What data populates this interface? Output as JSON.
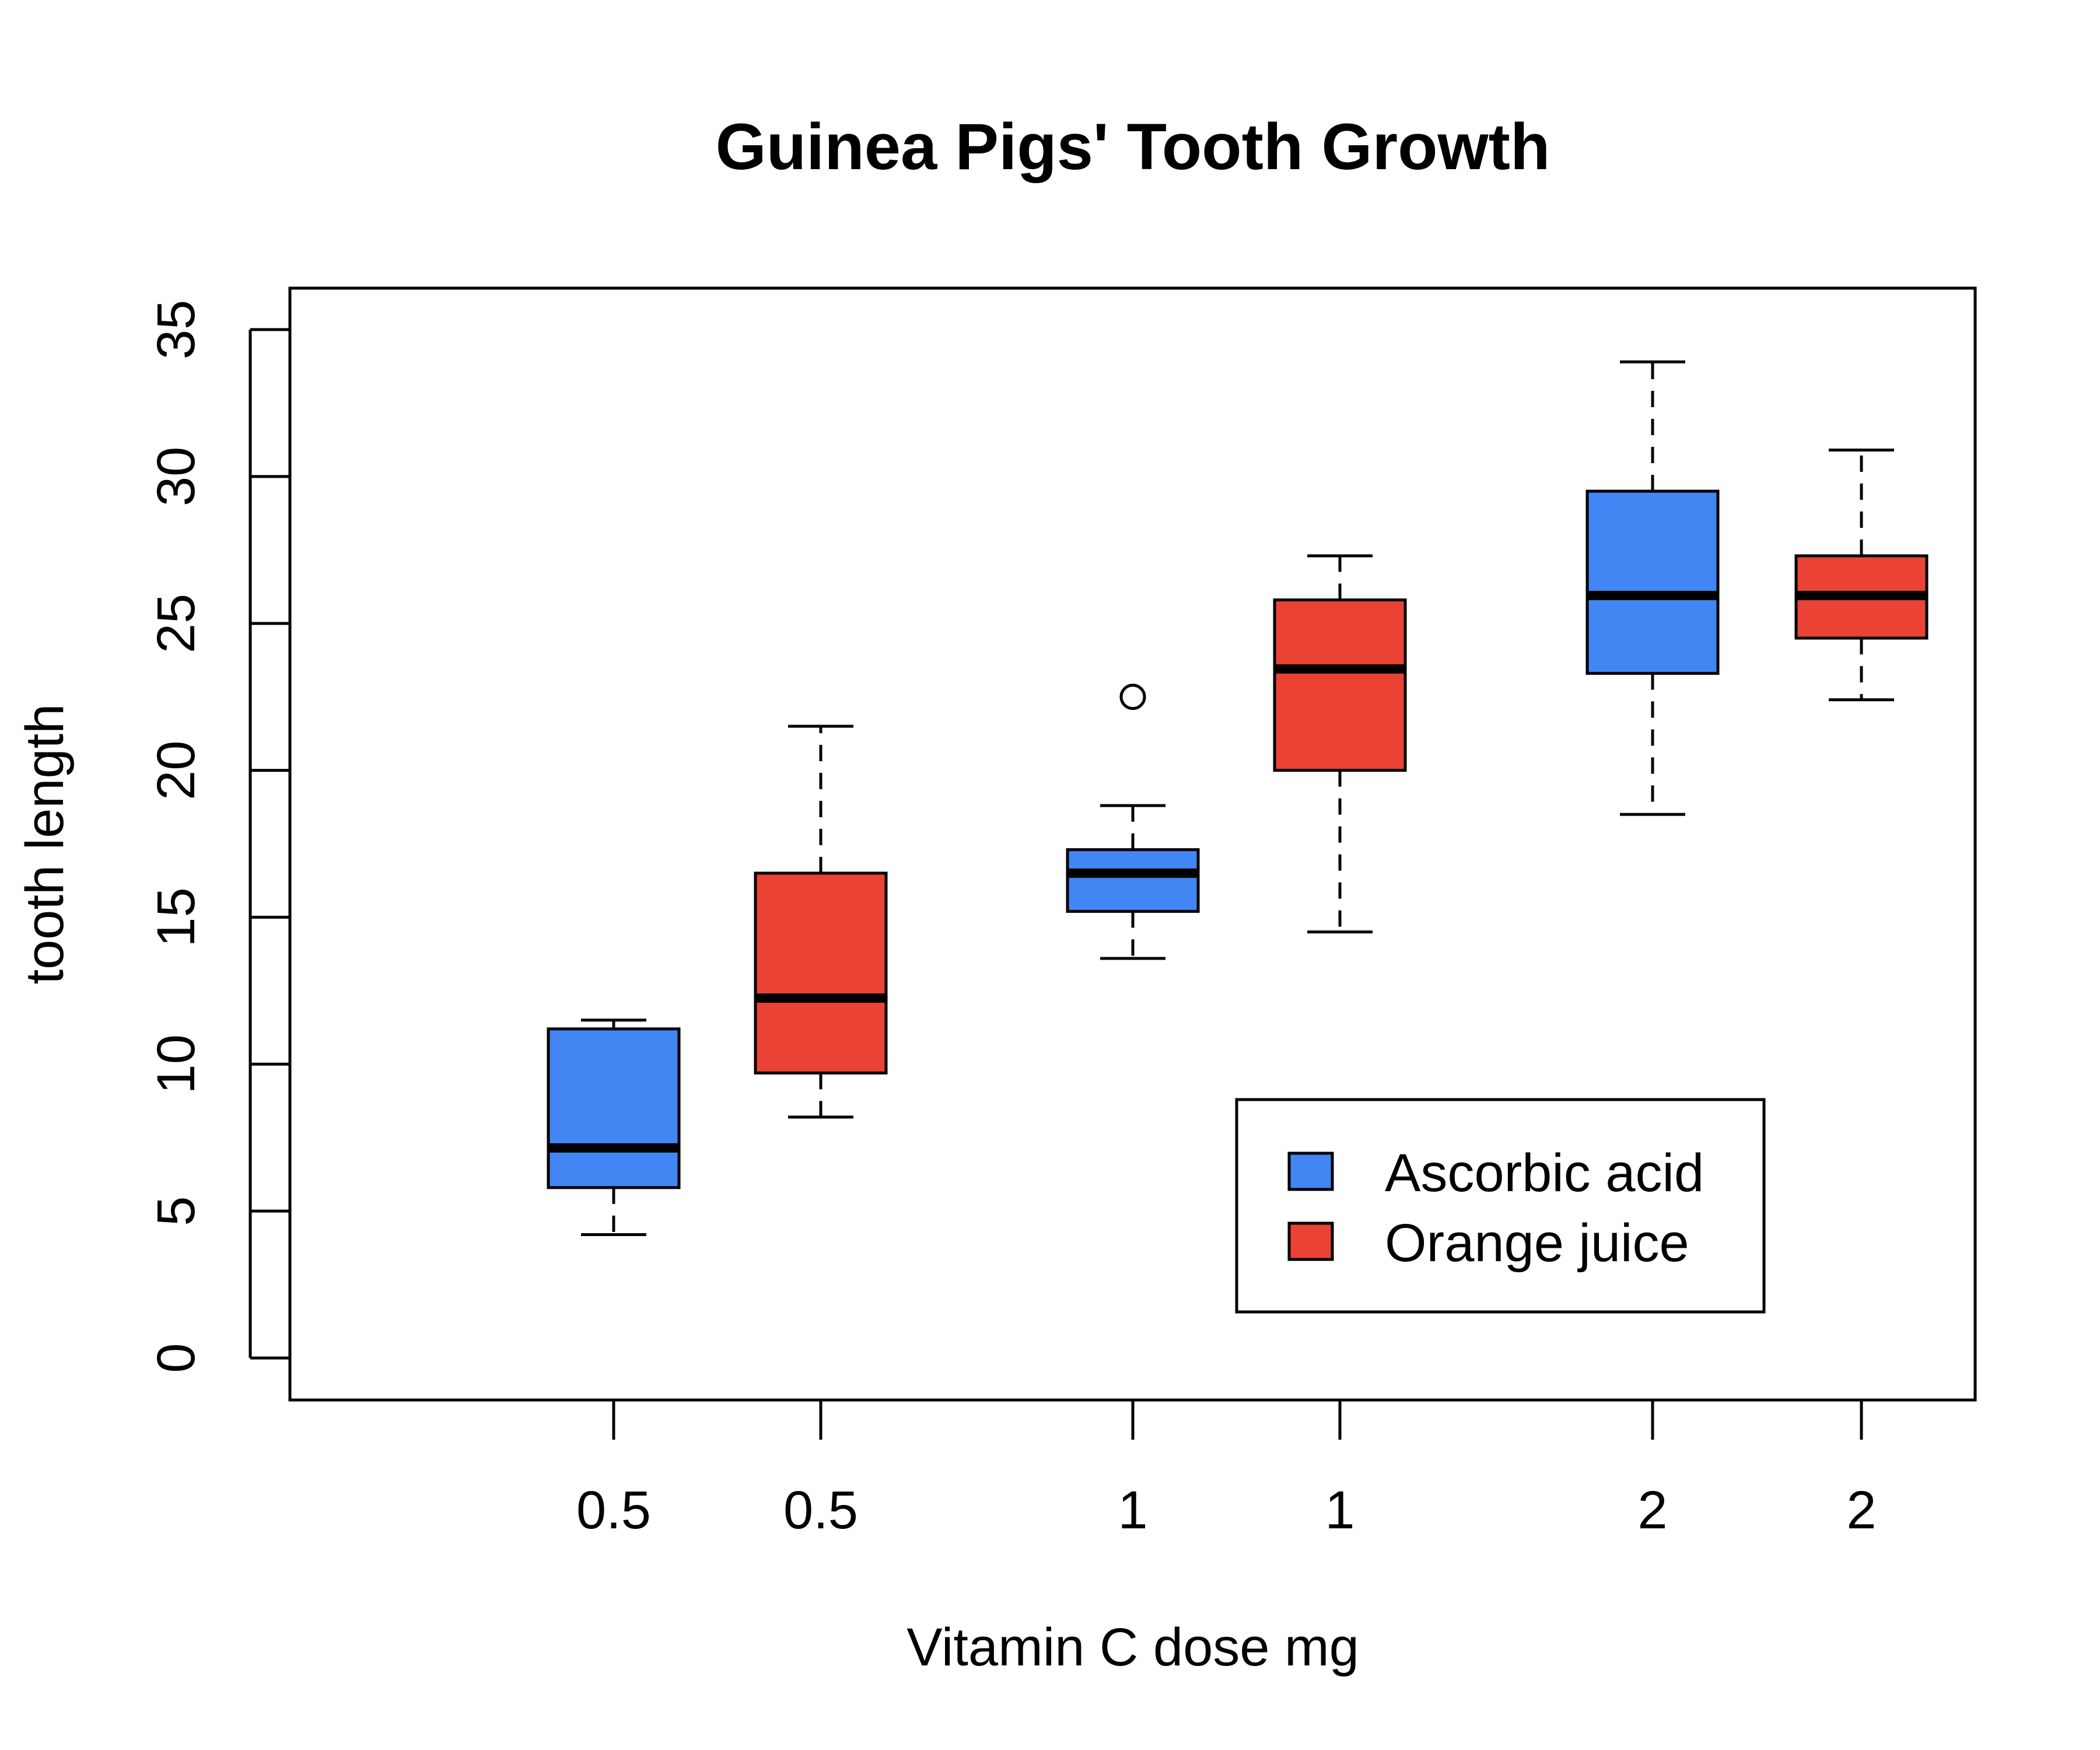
{
  "chart_data": {
    "type": "boxplot",
    "title": "Guinea Pigs' Tooth Growth",
    "xlabel": "Vitamin C dose mg",
    "ylabel": "tooth length",
    "ylim": [
      -1.5,
      36.5
    ],
    "yticks": [
      0,
      5,
      10,
      15,
      20,
      25,
      30,
      35
    ],
    "grid": false,
    "categories": [
      "0.5",
      "0.5",
      "1",
      "1",
      "2",
      "2"
    ],
    "positions": [
      1,
      2,
      3.5,
      4.5,
      6,
      7
    ],
    "xlim": [
      -0.5,
      7.6
    ],
    "series": [
      {
        "name": "Ascorbic acid",
        "color": "#4286f4",
        "category": "0.5",
        "position": 1,
        "whisker_low": 4.2,
        "q1": 5.8,
        "median": 7.15,
        "q3": 11.2,
        "whisker_high": 11.5,
        "outliers": []
      },
      {
        "name": "Orange juice",
        "color": "#ea4335",
        "category": "0.5",
        "position": 2,
        "whisker_low": 8.2,
        "q1": 9.7,
        "median": 12.25,
        "q3": 16.5,
        "whisker_high": 21.5,
        "outliers": []
      },
      {
        "name": "Ascorbic acid",
        "color": "#4286f4",
        "category": "1",
        "position": 3.5,
        "whisker_low": 13.6,
        "q1": 15.2,
        "median": 16.5,
        "q3": 17.3,
        "whisker_high": 18.8,
        "outliers": [
          22.5
        ]
      },
      {
        "name": "Orange juice",
        "color": "#ea4335",
        "category": "1",
        "position": 4.5,
        "whisker_low": 14.5,
        "q1": 20.0,
        "median": 23.45,
        "q3": 25.8,
        "whisker_high": 27.3,
        "outliers": []
      },
      {
        "name": "Ascorbic acid",
        "color": "#4286f4",
        "category": "2",
        "position": 6,
        "whisker_low": 18.5,
        "q1": 23.3,
        "median": 25.95,
        "q3": 29.5,
        "whisker_high": 33.9,
        "outliers": []
      },
      {
        "name": "Orange juice",
        "color": "#ea4335",
        "category": "2",
        "position": 7,
        "whisker_low": 22.4,
        "q1": 24.5,
        "median": 25.95,
        "q3": 27.3,
        "whisker_high": 30.9,
        "outliers": []
      }
    ],
    "legend": {
      "position": "bottom-right",
      "entries": [
        {
          "label": "Ascorbic acid",
          "color": "#4286f4"
        },
        {
          "label": "Orange juice",
          "color": "#ea4335"
        }
      ]
    }
  }
}
